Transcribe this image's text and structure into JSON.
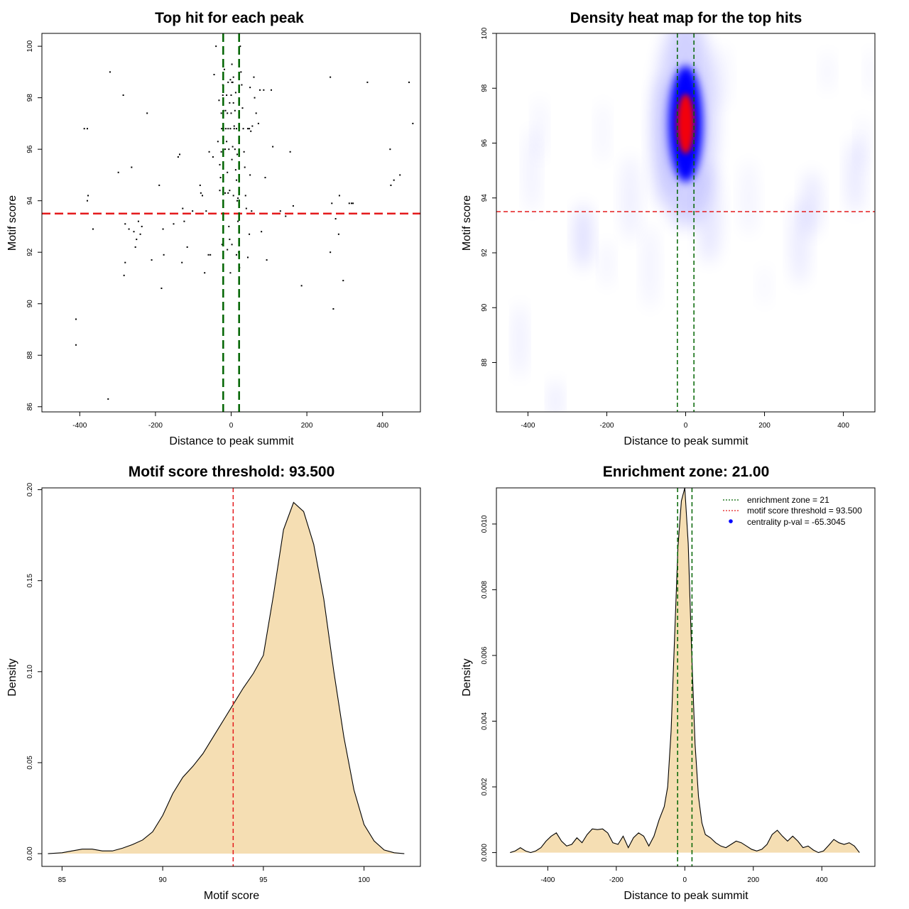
{
  "chart_data": [
    {
      "type": "scatter",
      "title": "Top hit for each peak",
      "xlabel": "Distance to peak summit",
      "ylabel": "Motif score",
      "xticks": [
        "-400",
        "-200",
        "0",
        "200",
        "400"
      ],
      "yticks": [
        "86",
        "88",
        "90",
        "92",
        "94",
        "96",
        "98",
        "100"
      ],
      "xlim": [
        -500,
        500
      ],
      "ylim": [
        85.8,
        100.5
      ],
      "threshold_y": 93.5,
      "zone_x": [
        -21,
        21
      ],
      "threshold_color": "#e41a1c",
      "zone_color": "#006400",
      "points": [
        [
          -410,
          89.4
        ],
        [
          -410,
          88.4
        ],
        [
          -325,
          86.3
        ],
        [
          -320,
          99.0
        ],
        [
          -388,
          96.8
        ],
        [
          -380,
          96.8
        ],
        [
          -378,
          94.2
        ],
        [
          -380,
          94.0
        ],
        [
          -365,
          92.9
        ],
        [
          -285,
          98.1
        ],
        [
          -298,
          95.1
        ],
        [
          -263,
          95.3
        ],
        [
          -280,
          93.1
        ],
        [
          -280,
          91.6
        ],
        [
          -283,
          91.1
        ],
        [
          -270,
          92.9
        ],
        [
          -257,
          92.8
        ],
        [
          -253,
          92.2
        ],
        [
          -250,
          92.5
        ],
        [
          -245,
          93.2
        ],
        [
          -240,
          92.7
        ],
        [
          -236,
          93.0
        ],
        [
          -222,
          97.4
        ],
        [
          -210,
          91.7
        ],
        [
          -190,
          94.6
        ],
        [
          -184,
          90.6
        ],
        [
          -180,
          92.9
        ],
        [
          -178,
          91.9
        ],
        [
          -136,
          95.8
        ],
        [
          -140,
          95.7
        ],
        [
          -152,
          93.1
        ],
        [
          -143,
          93.5
        ],
        [
          -130,
          91.6
        ],
        [
          -128,
          93.7
        ],
        [
          -124,
          93.2
        ],
        [
          -116,
          92.2
        ],
        [
          -102,
          93.6
        ],
        [
          -82,
          94.6
        ],
        [
          -80,
          94.3
        ],
        [
          -76,
          94.2
        ],
        [
          -66,
          93.6
        ],
        [
          -70,
          91.2
        ],
        [
          -60,
          91.9
        ],
        [
          -55,
          91.9
        ],
        [
          -58,
          95.9
        ],
        [
          -48,
          95.7
        ],
        [
          -45,
          98.9
        ],
        [
          -40,
          100.0
        ],
        [
          -35,
          96.3
        ],
        [
          -32,
          97.9
        ],
        [
          -30,
          95.4
        ],
        [
          -28,
          94.9
        ],
        [
          -25,
          96.8
        ],
        [
          -22,
          98.5
        ],
        [
          -18,
          99.1
        ],
        [
          -15,
          97.5
        ],
        [
          -12,
          96.3
        ],
        [
          -10,
          95.1
        ],
        [
          -8,
          94.3
        ],
        [
          -6,
          93.0
        ],
        [
          -4,
          92.5
        ],
        [
          -2,
          91.2
        ],
        [
          2,
          99.3
        ],
        [
          4,
          98.6
        ],
        [
          6,
          97.8
        ],
        [
          8,
          96.9
        ],
        [
          10,
          96.0
        ],
        [
          12,
          95.2
        ],
        [
          14,
          94.8
        ],
        [
          16,
          94.0
        ],
        [
          18,
          93.2
        ],
        [
          20,
          92.0
        ],
        [
          22,
          91.4
        ],
        [
          24,
          100.0
        ],
        [
          26,
          99.0
        ],
        [
          28,
          98.5
        ],
        [
          30,
          97.6
        ],
        [
          32,
          96.8
        ],
        [
          34,
          95.9
        ],
        [
          36,
          95.3
        ],
        [
          38,
          94.2
        ],
        [
          40,
          93.7
        ],
        [
          -20,
          96.8
        ],
        [
          -14,
          96.8
        ],
        [
          -8,
          96.8
        ],
        [
          -2,
          96.8
        ],
        [
          8,
          96.8
        ],
        [
          14,
          96.8
        ],
        [
          -26,
          97.4
        ],
        [
          -20,
          97.5
        ],
        [
          -10,
          97.4
        ],
        [
          0,
          97.4
        ],
        [
          10,
          97.5
        ],
        [
          -22,
          98.1
        ],
        [
          -12,
          98.1
        ],
        [
          0,
          98.1
        ],
        [
          12,
          98.2
        ],
        [
          -2,
          98.7
        ],
        [
          6,
          98.8
        ],
        [
          -26,
          95.9
        ],
        [
          -16,
          96.0
        ],
        [
          -6,
          96.0
        ],
        [
          4,
          96.1
        ],
        [
          16,
          95.8
        ],
        [
          -30,
          94.4
        ],
        [
          -16,
          94.3
        ],
        [
          -4,
          94.4
        ],
        [
          6,
          94.2
        ],
        [
          18,
          94.1
        ],
        [
          -24,
          92.3
        ],
        [
          -10,
          92.1
        ],
        [
          2,
          92.3
        ],
        [
          14,
          91.9
        ],
        [
          -4,
          97.8
        ],
        [
          2,
          95.6
        ],
        [
          -8,
          98.6
        ],
        [
          2,
          98.6
        ],
        [
          44,
          96.8
        ],
        [
          48,
          96.8
        ],
        [
          52,
          96.7
        ],
        [
          56,
          96.9
        ],
        [
          50,
          98.4
        ],
        [
          60,
          98.8
        ],
        [
          62,
          98.0
        ],
        [
          66,
          97.4
        ],
        [
          72,
          97.0
        ],
        [
          50,
          95.0
        ],
        [
          54,
          93.6
        ],
        [
          48,
          92.7
        ],
        [
          44,
          91.8
        ],
        [
          76,
          98.3
        ],
        [
          80,
          92.8
        ],
        [
          86,
          98.3
        ],
        [
          90,
          94.9
        ],
        [
          94,
          91.7
        ],
        [
          106,
          98.3
        ],
        [
          110,
          96.1
        ],
        [
          130,
          93.6
        ],
        [
          144,
          93.4
        ],
        [
          156,
          95.9
        ],
        [
          164,
          93.8
        ],
        [
          186,
          90.7
        ],
        [
          262,
          98.8
        ],
        [
          262,
          92.0
        ],
        [
          266,
          93.9
        ],
        [
          270,
          89.8
        ],
        [
          276,
          93.3
        ],
        [
          284,
          92.7
        ],
        [
          286,
          94.2
        ],
        [
          296,
          90.9
        ],
        [
          312,
          93.9
        ],
        [
          318,
          93.9
        ],
        [
          322,
          93.9
        ],
        [
          360,
          98.6
        ],
        [
          420,
          96.0
        ],
        [
          422,
          94.6
        ],
        [
          430,
          94.8
        ],
        [
          446,
          95.0
        ],
        [
          470,
          98.6
        ],
        [
          480,
          97.0
        ]
      ]
    },
    {
      "type": "heatmap",
      "title": "Density heat map for the top hits",
      "xlabel": "Distance to peak summit",
      "ylabel": "Motif score",
      "xticks": [
        "-400",
        "-200",
        "0",
        "200",
        "400"
      ],
      "yticks": [
        "88",
        "90",
        "92",
        "94",
        "96",
        "98",
        "100"
      ],
      "xlim": [
        -480,
        480
      ],
      "ylim": [
        86.2,
        100
      ],
      "threshold_y": 93.5,
      "zone_x": [
        -21,
        21
      ],
      "threshold_color": "#e41a1c",
      "zone_color": "#006400",
      "colors": [
        "#ffffff",
        "#0000ff",
        "#ff0000"
      ],
      "peak": {
        "x": 0,
        "y": 96.7
      }
    },
    {
      "type": "area",
      "title": "Motif score threshold: 93.500",
      "xlabel": "Motif score",
      "ylabel": "Density",
      "xticks": [
        "85",
        "90",
        "95",
        "100"
      ],
      "yticks": [
        "0.00",
        "0.05",
        "0.10",
        "0.15",
        "0.20"
      ],
      "xlim": [
        84,
        102.8
      ],
      "ylim": [
        -0.007,
        0.201
      ],
      "threshold_x": 93.5,
      "fill_color": "#f5deb3",
      "threshold_color": "#e41a1c",
      "x": [
        84.3,
        85.0,
        85.5,
        86.0,
        86.5,
        87.0,
        87.5,
        88.0,
        88.5,
        89.0,
        89.5,
        90.0,
        90.5,
        91.0,
        91.5,
        92.0,
        92.5,
        93.0,
        93.5,
        94.0,
        94.5,
        95.0,
        95.5,
        96.0,
        96.5,
        97.0,
        97.5,
        98.0,
        98.5,
        99.0,
        99.5,
        100.0,
        100.5,
        101.0,
        101.5,
        102.0
      ],
      "y": [
        0.0,
        0.0005,
        0.0015,
        0.0025,
        0.0025,
        0.0015,
        0.0015,
        0.003,
        0.005,
        0.0075,
        0.012,
        0.021,
        0.033,
        0.042,
        0.048,
        0.055,
        0.064,
        0.073,
        0.082,
        0.091,
        0.099,
        0.109,
        0.142,
        0.178,
        0.193,
        0.188,
        0.17,
        0.14,
        0.1,
        0.064,
        0.035,
        0.016,
        0.007,
        0.002,
        0.0005,
        0.0
      ]
    },
    {
      "type": "area",
      "title": "Enrichment zone: 21.00",
      "xlabel": "Distance to peak summit",
      "ylabel": "Density",
      "xticks": [
        "-400",
        "-200",
        "0",
        "200",
        "400"
      ],
      "yticks": [
        "0.000",
        "0.002",
        "0.004",
        "0.006",
        "0.008",
        "0.010"
      ],
      "xlim": [
        -550,
        555
      ],
      "ylim": [
        -0.00042,
        0.0111
      ],
      "zone_x": [
        -21,
        21
      ],
      "fill_color": "#f5deb3",
      "zone_color": "#006400",
      "legend": {
        "position": "top-right",
        "entries": [
          {
            "label": "enrichment zone = 21",
            "color": "#006400",
            "symbol": "dotted-line"
          },
          {
            "label": "motif score threshold = 93.500",
            "color": "#e41a1c",
            "symbol": "dotted-line"
          },
          {
            "label": "centrality p-val = -65.3045",
            "color": "#0000ff",
            "symbol": "dot"
          }
        ]
      },
      "x": [
        -510,
        -495,
        -480,
        -465,
        -450,
        -435,
        -420,
        -405,
        -390,
        -375,
        -360,
        -345,
        -330,
        -315,
        -300,
        -285,
        -270,
        -255,
        -240,
        -225,
        -210,
        -195,
        -180,
        -165,
        -150,
        -135,
        -120,
        -105,
        -90,
        -75,
        -60,
        -50,
        -40,
        -30,
        -20,
        -10,
        0,
        10,
        20,
        30,
        40,
        50,
        60,
        75,
        90,
        105,
        120,
        135,
        150,
        165,
        180,
        195,
        210,
        225,
        240,
        255,
        270,
        285,
        300,
        315,
        330,
        345,
        360,
        375,
        390,
        405,
        420,
        435,
        450,
        465,
        480,
        495,
        510
      ],
      "y": [
        0.0,
        5e-05,
        0.00015,
        5e-05,
        0.0,
        5e-05,
        0.00015,
        0.00035,
        0.0005,
        0.0006,
        0.00035,
        0.0002,
        0.00025,
        0.00045,
        0.0003,
        0.00055,
        0.00072,
        0.0007,
        0.00072,
        0.0006,
        0.0003,
        0.00025,
        0.0005,
        0.00015,
        0.00045,
        0.0006,
        0.0005,
        0.0002,
        0.0005,
        0.001,
        0.0014,
        0.002,
        0.0037,
        0.0065,
        0.0093,
        0.0107,
        0.0111,
        0.0094,
        0.0061,
        0.0033,
        0.0017,
        0.0009,
        0.00055,
        0.00045,
        0.0003,
        0.0002,
        0.00015,
        0.00025,
        0.00035,
        0.0003,
        0.0002,
        0.0001,
        5e-05,
        0.0001,
        0.00025,
        0.00055,
        0.00068,
        0.0005,
        0.00035,
        0.0005,
        0.00035,
        0.00015,
        0.0002,
        8e-05,
        0.0,
        5e-05,
        0.00022,
        0.0004,
        0.0003,
        0.00025,
        0.0003,
        0.0002,
        0.0
      ]
    }
  ]
}
